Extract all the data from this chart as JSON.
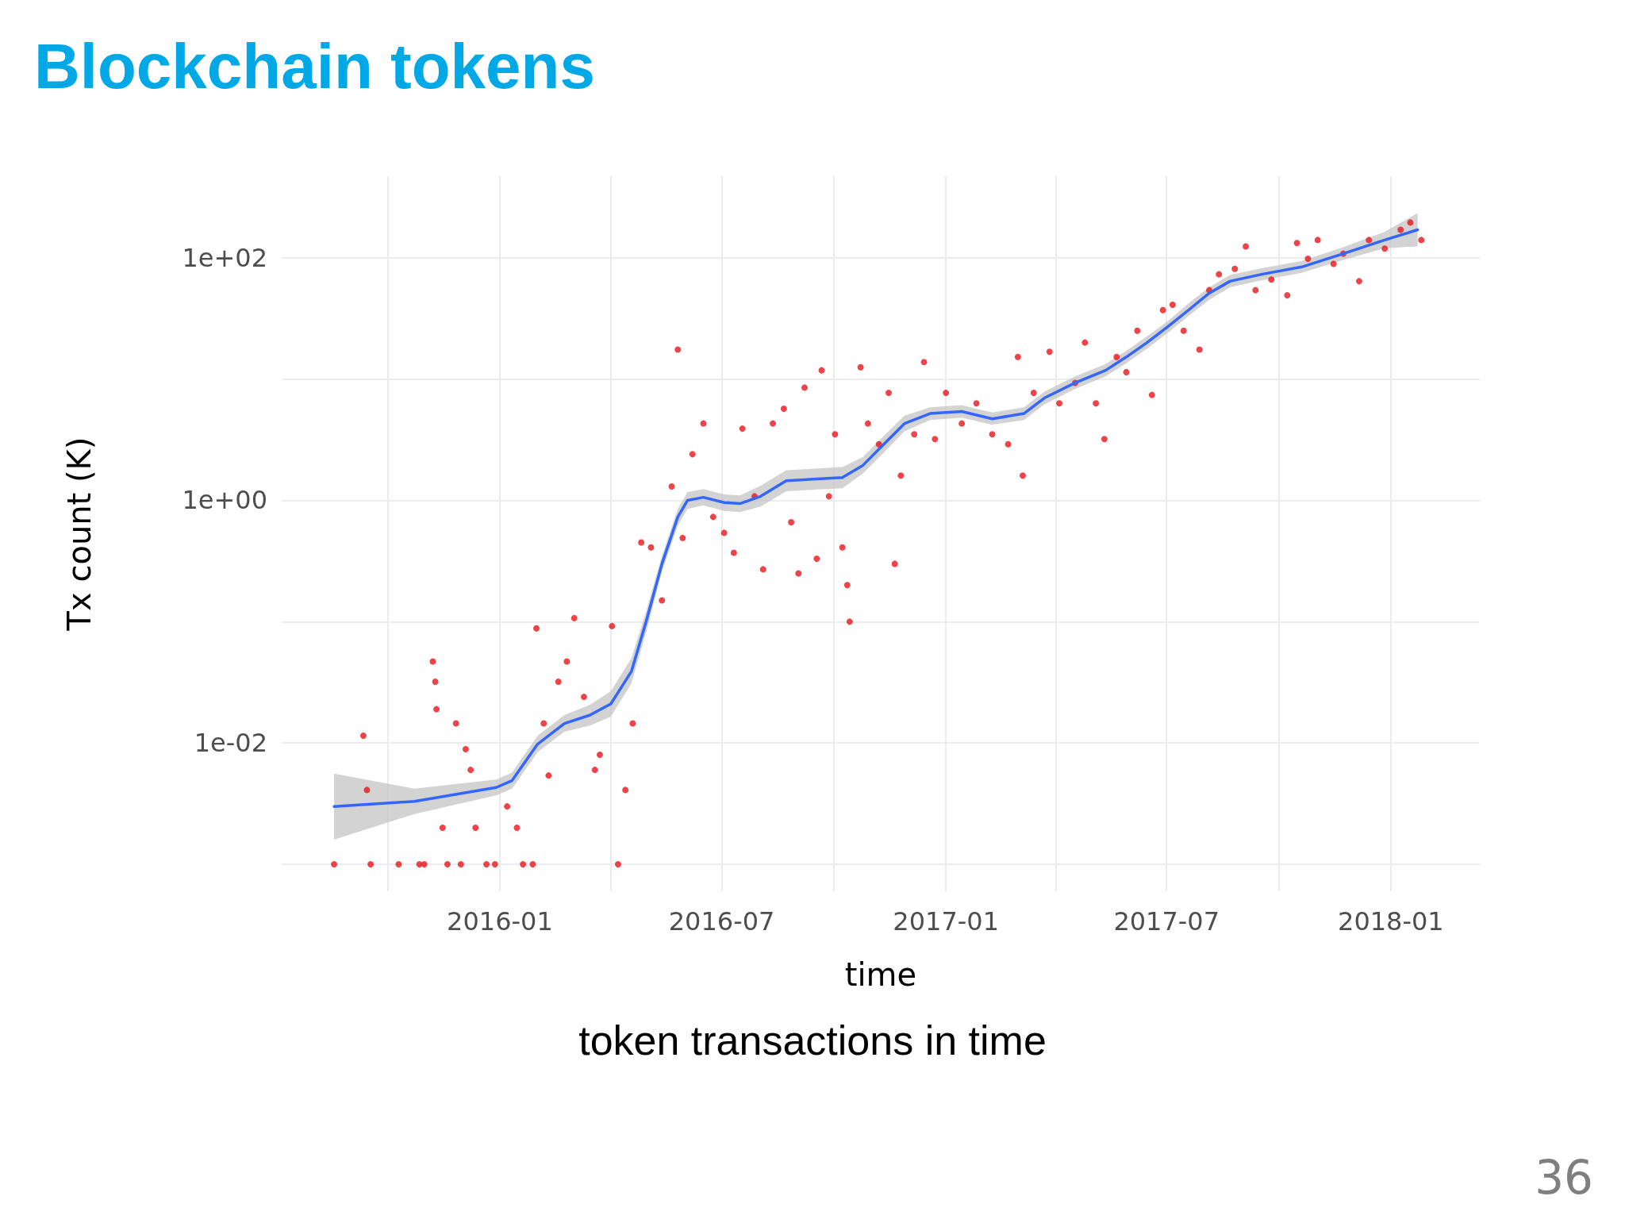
{
  "chart_data": {
    "type": "scatter",
    "title": "Blockchain tokens",
    "xlabel": "time",
    "ylabel": "Tx count (K)",
    "annotations": [
      "token transactions in time",
      "36"
    ],
    "log": "y",
    "grid": true,
    "xlim": [
      "2015-07-06",
      "2018-03-15"
    ],
    "xticks": [
      {
        "value": "2015-10-01",
        "label": null
      },
      {
        "value": "2016-01-01",
        "label": "2016-01"
      },
      {
        "value": "2016-04-01",
        "label": null
      },
      {
        "value": "2016-07-01",
        "label": "2016-07"
      },
      {
        "value": "2016-10-01",
        "label": null
      },
      {
        "value": "2017-01-01",
        "label": "2017-01"
      },
      {
        "value": "2017-04-01",
        "label": null
      },
      {
        "value": "2017-07-01",
        "label": "2017-07"
      },
      {
        "value": "2017-10-01",
        "label": null
      },
      {
        "value": "2018-01-01",
        "label": "2018-01"
      }
    ],
    "ylim": [
      0.0006,
      470
    ],
    "yticks": [
      {
        "value": 0.001,
        "label": null
      },
      {
        "value": 0.01,
        "label": "1e-02"
      },
      {
        "value": 0.1,
        "label": null
      },
      {
        "value": 1,
        "label": "1e+00"
      },
      {
        "value": 10,
        "label": null
      },
      {
        "value": 100,
        "label": "1e+02"
      }
    ],
    "series": [
      {
        "marker": "circle",
        "color": "#e8151b",
        "x": [
          "2015-08-18",
          "2015-09-11",
          "2015-09-14",
          "2015-09-17",
          "2015-10-10",
          "2015-10-27",
          "2015-10-31",
          "2015-11-07",
          "2015-11-09",
          "2015-11-10",
          "2015-11-15",
          "2015-11-19",
          "2015-11-26",
          "2015-11-30",
          "2015-12-04",
          "2015-12-08",
          "2015-12-12",
          "2015-12-21",
          "2015-12-28",
          "2016-01-07",
          "2016-01-15",
          "2016-01-20",
          "2016-01-28",
          "2016-01-31",
          "2016-02-06",
          "2016-02-10",
          "2016-02-18",
          "2016-02-25",
          "2016-03-02",
          "2016-03-10",
          "2016-03-19",
          "2016-03-23",
          "2016-04-02",
          "2016-04-07",
          "2016-04-13",
          "2016-04-19",
          "2016-04-26",
          "2016-05-04",
          "2016-05-13",
          "2016-05-21",
          "2016-05-26",
          "2016-05-30",
          "2016-06-07",
          "2016-06-16",
          "2016-06-24",
          "2016-07-03",
          "2016-07-11",
          "2016-07-18",
          "2016-07-28",
          "2016-08-04",
          "2016-08-12",
          "2016-08-21",
          "2016-08-27",
          "2016-09-02",
          "2016-09-07",
          "2016-09-17",
          "2016-09-21",
          "2016-09-27",
          "2016-10-02",
          "2016-10-08",
          "2016-10-12",
          "2016-10-14",
          "2016-10-23",
          "2016-10-29",
          "2016-11-07",
          "2016-11-15",
          "2016-11-20",
          "2016-11-25",
          "2016-12-06",
          "2016-12-14",
          "2016-12-23",
          "2017-01-01",
          "2017-01-14",
          "2017-01-26",
          "2017-02-08",
          "2017-02-21",
          "2017-03-01",
          "2017-03-05",
          "2017-03-14",
          "2017-03-27",
          "2017-04-04",
          "2017-04-17",
          "2017-04-25",
          "2017-05-04",
          "2017-05-11",
          "2017-05-21",
          "2017-05-29",
          "2017-06-07",
          "2017-06-19",
          "2017-06-28",
          "2017-07-06",
          "2017-07-15",
          "2017-07-28",
          "2017-08-05",
          "2017-08-13",
          "2017-08-26",
          "2017-09-04",
          "2017-09-12",
          "2017-09-25",
          "2017-10-08",
          "2017-10-16",
          "2017-10-25",
          "2017-11-02",
          "2017-11-15",
          "2017-11-23",
          "2017-12-06",
          "2017-12-14",
          "2017-12-27",
          "2018-01-09",
          "2018-01-17",
          "2018-01-26"
        ],
        "values": [
          0.001,
          0.0115,
          0.0041,
          0.001,
          0.001,
          0.001,
          0.001,
          0.047,
          0.032,
          0.019,
          0.002,
          0.001,
          0.0145,
          0.001,
          0.0089,
          0.006,
          0.002,
          0.001,
          0.001,
          0.003,
          0.002,
          0.001,
          0.001,
          0.088,
          0.0145,
          0.0054,
          0.032,
          0.047,
          0.107,
          0.024,
          0.006,
          0.008,
          0.092,
          0.001,
          0.0041,
          0.0145,
          0.45,
          0.41,
          0.15,
          1.3,
          17.5,
          0.49,
          2.4,
          4.3,
          0.73,
          0.54,
          0.37,
          3.9,
          1.08,
          0.27,
          4.3,
          5.7,
          0.66,
          0.25,
          8.5,
          0.33,
          11.8,
          1.08,
          3.5,
          0.41,
          0.2,
          0.1,
          12.5,
          4.3,
          2.9,
          7.7,
          0.3,
          1.6,
          3.5,
          13.8,
          3.2,
          7.7,
          4.3,
          6.3,
          3.5,
          2.9,
          15.2,
          1.6,
          7.7,
          16.8,
          6.3,
          9.3,
          20,
          6.3,
          3.2,
          15.2,
          11.4,
          25,
          7.4,
          37,
          41,
          25,
          17.5,
          54,
          73,
          81,
          124,
          54,
          66,
          49,
          132,
          98,
          140,
          89,
          108,
          64,
          140,
          119,
          170,
          195,
          140
        ]
      },
      {
        "type": "line",
        "marker": "none",
        "color": "#3366ff",
        "x": [
          "2015-08-18",
          "2015-10-23",
          "2015-12-29",
          "2016-01-11",
          "2016-02-01",
          "2016-02-23",
          "2016-03-15",
          "2016-04-01",
          "2016-04-18",
          "2016-04-30",
          "2016-05-13",
          "2016-05-26",
          "2016-06-03",
          "2016-06-16",
          "2016-07-03",
          "2016-07-16",
          "2016-08-02",
          "2016-08-23",
          "2016-09-17",
          "2016-10-08",
          "2016-10-25",
          "2016-11-11",
          "2016-11-28",
          "2016-12-19",
          "2017-01-14",
          "2017-02-08",
          "2017-03-06",
          "2017-03-23",
          "2017-04-17",
          "2017-05-12",
          "2017-05-29",
          "2017-06-15",
          "2017-07-02",
          "2017-07-19",
          "2017-08-05",
          "2017-08-22",
          "2017-09-17",
          "2017-10-20",
          "2017-11-23",
          "2017-12-27",
          "2018-01-23"
        ],
        "values": [
          0.003,
          0.0033,
          0.0043,
          0.0049,
          0.0098,
          0.0145,
          0.017,
          0.021,
          0.039,
          0.1,
          0.3,
          0.73,
          1.0,
          1.06,
          0.96,
          0.94,
          1.08,
          1.45,
          1.5,
          1.54,
          1.95,
          2.9,
          4.3,
          5.2,
          5.4,
          4.7,
          5.2,
          7.0,
          9.3,
          11.8,
          15.2,
          20,
          27,
          37,
          51,
          64,
          73,
          84,
          108,
          140,
          170
        ],
        "lower": [
          0.0016,
          0.0026,
          0.0037,
          0.0042,
          0.0084,
          0.0124,
          0.0139,
          0.0165,
          0.031,
          0.082,
          0.26,
          0.62,
          0.85,
          0.91,
          0.82,
          0.8,
          0.89,
          1.19,
          1.23,
          1.26,
          1.67,
          2.48,
          3.7,
          4.6,
          4.8,
          4.2,
          4.6,
          6.2,
          8.3,
          10.5,
          13.5,
          17.8,
          24,
          33,
          45,
          57,
          65,
          75,
          96,
          120,
          124
        ],
        "upper": [
          0.0056,
          0.0042,
          0.005,
          0.0057,
          0.0115,
          0.017,
          0.0207,
          0.0267,
          0.05,
          0.122,
          0.35,
          0.85,
          1.17,
          1.24,
          1.12,
          1.1,
          1.32,
          1.77,
          1.83,
          1.88,
          2.28,
          3.4,
          5.0,
          5.85,
          6.1,
          5.3,
          5.85,
          7.9,
          10.5,
          13.3,
          17.1,
          22.5,
          30,
          42,
          57,
          72,
          82,
          94,
          122,
          164,
          233
        ]
      }
    ]
  }
}
